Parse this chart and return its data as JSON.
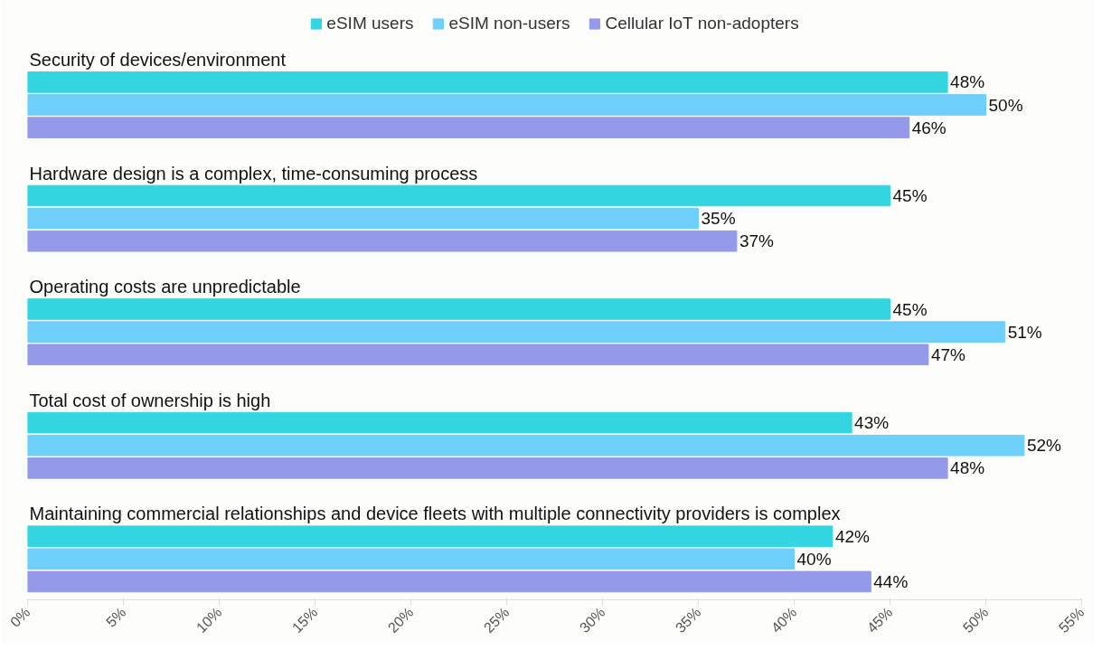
{
  "chart_data": {
    "type": "bar",
    "orientation": "horizontal",
    "categories": [
      "Security of devices/environment",
      "Hardware design is a complex, time-consuming process",
      "Operating costs are unpredictable",
      "Total cost of ownership is high",
      "Maintaining commercial relationships and device fleets with multiple connectivity providers is complex"
    ],
    "series": [
      {
        "name": "eSIM users",
        "color": "#33d6e0",
        "values": [
          48,
          45,
          45,
          43,
          42
        ],
        "value_labels": [
          "48%",
          "45%",
          "45%",
          "43%",
          "42%"
        ]
      },
      {
        "name": "eSIM non-users",
        "color": "#6dcffa",
        "values": [
          50,
          35,
          51,
          52,
          40
        ],
        "value_labels": [
          "50%",
          "35%",
          "51%",
          "52%",
          "40%"
        ]
      },
      {
        "name": "Cellular IoT non-adopters",
        "color": "#9499ea",
        "values": [
          46,
          37,
          47,
          48,
          44
        ],
        "value_labels": [
          "46%",
          "37%",
          "47%",
          "48%",
          "44%"
        ]
      }
    ],
    "xlim": [
      0,
      55
    ],
    "xticks": [
      {
        "value": 0,
        "label": "0%"
      },
      {
        "value": 5,
        "label": "5%"
      },
      {
        "value": 10,
        "label": "10%"
      },
      {
        "value": 15,
        "label": "15%"
      },
      {
        "value": 20,
        "label": "20%"
      },
      {
        "value": 25,
        "label": "25%"
      },
      {
        "value": 30,
        "label": "30%"
      },
      {
        "value": 35,
        "label": "35%"
      },
      {
        "value": 40,
        "label": "40%"
      },
      {
        "value": 45,
        "label": "45%"
      },
      {
        "value": 50,
        "label": "50%"
      },
      {
        "value": 55,
        "label": "55%"
      }
    ],
    "legend": "top",
    "grid": false
  }
}
